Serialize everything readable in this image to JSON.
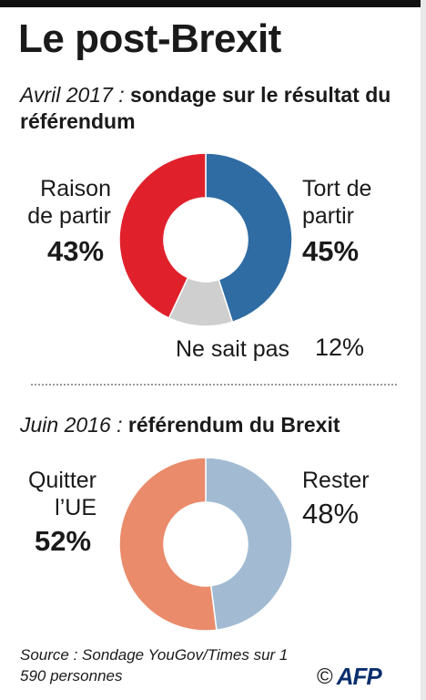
{
  "title": "Le post-Brexit",
  "survey2017": {
    "date_label": "Avril 2017 :",
    "subtitle": "sondage sur le résultat du référendum"
  },
  "referendum2016": {
    "date_label": "Juin 2016 :",
    "subtitle": "référendum du Brexit"
  },
  "source": "Source : Sondage YouGov/Times sur 1 590 personnes",
  "credit": {
    "copyright": "©",
    "agency": "AFP"
  },
  "colors": {
    "right_to_leave": "#e0212c",
    "wrong_to_leave": "#2f6ca3",
    "dont_know": "#cfcfcf",
    "leave": "#ea8b6b",
    "remain": "#a2bbd2"
  },
  "chart_data": [
    {
      "type": "pie",
      "style": "donut",
      "title": "Avril 2017 : sondage sur le résultat du référendum",
      "slices": [
        {
          "label": "Tort de partir",
          "value": 45,
          "display": "45%",
          "color": "#2f6ca3"
        },
        {
          "label": "Ne sait pas",
          "value": 12,
          "display": "12%",
          "color": "#cfcfcf"
        },
        {
          "label": "Raison de partir",
          "value": 43,
          "display": "43%",
          "color": "#e0212c"
        }
      ]
    },
    {
      "type": "pie",
      "style": "donut",
      "title": "Juin 2016 : référendum du Brexit",
      "slices": [
        {
          "label": "Rester",
          "value": 48,
          "display": "48%",
          "color": "#a2bbd2"
        },
        {
          "label": "Quitter l’UE",
          "value": 52,
          "display": "52%",
          "color": "#ea8b6b"
        }
      ]
    }
  ]
}
